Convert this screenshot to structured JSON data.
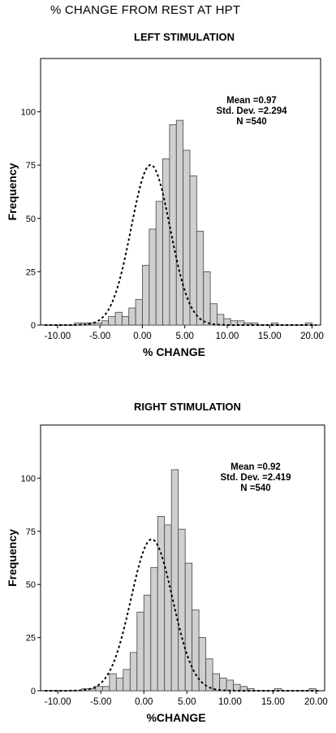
{
  "page_title": "% CHANGE FROM REST AT HPT",
  "chart_data": [
    {
      "type": "bar",
      "title": "LEFT STIMULATION",
      "xlabel": "% CHANGE",
      "ylabel": "Frequency",
      "xlim": [
        -12,
        21
      ],
      "ylim": [
        0,
        125
      ],
      "xticks": [
        -10,
        -5,
        0,
        5,
        10,
        15,
        20
      ],
      "xtick_labels": [
        "-10.00",
        "-5.00",
        "0.00",
        "5.00",
        "10.00",
        "15.00",
        "20.00"
      ],
      "yticks": [
        0,
        25,
        50,
        75,
        100
      ],
      "bin_width": 0.8,
      "bin_start": -8.0,
      "values": [
        1,
        1,
        1,
        1,
        2,
        4,
        6,
        4,
        8,
        12,
        28,
        45,
        58,
        78,
        94,
        96,
        82,
        70,
        44,
        25,
        10,
        5,
        3,
        2,
        2,
        1,
        1,
        0,
        0,
        1,
        0,
        0,
        0,
        0,
        1,
        0,
        0,
        0,
        0,
        0,
        0,
        0,
        0,
        0
      ],
      "stats": {
        "mean": "Mean =0.97",
        "sd": "Std. Dev. =2.294",
        "n": "N =540"
      },
      "normal_curve": {
        "mean": 0.97,
        "sd": 2.294,
        "n": 540
      },
      "grid": false
    },
    {
      "type": "bar",
      "title": "RIGHT STIMULATION",
      "xlabel": "%CHANGE",
      "ylabel": "Frequency",
      "xlim": [
        -12,
        21
      ],
      "ylim": [
        0,
        125
      ],
      "xticks": [
        -10,
        -5,
        0,
        5,
        10,
        15,
        20
      ],
      "xtick_labels": [
        "-10.00",
        "-5.00",
        "0.00",
        "5.00",
        "10.00",
        "15.00",
        "20.00"
      ],
      "yticks": [
        0,
        25,
        50,
        75,
        100
      ],
      "bin_width": 0.8,
      "bin_start": -8.0,
      "values": [
        0,
        1,
        1,
        2,
        2,
        8,
        6,
        10,
        18,
        37,
        45,
        58,
        82,
        78,
        104,
        76,
        60,
        38,
        25,
        15,
        8,
        6,
        5,
        3,
        2,
        1,
        0,
        0,
        0,
        1,
        0,
        0,
        0,
        0,
        1,
        0,
        0,
        0,
        0,
        0,
        0,
        0,
        0,
        0
      ],
      "stats": {
        "mean": "Mean =0.92",
        "sd": "Std. Dev. =2.419",
        "n": "N =540"
      },
      "normal_curve": {
        "mean": 0.92,
        "sd": 2.419,
        "n": 540
      },
      "grid": false
    }
  ],
  "colors": {
    "bar_fill": "#cfcfcf",
    "bar_stroke": "#444444",
    "curve": "#000000"
  }
}
